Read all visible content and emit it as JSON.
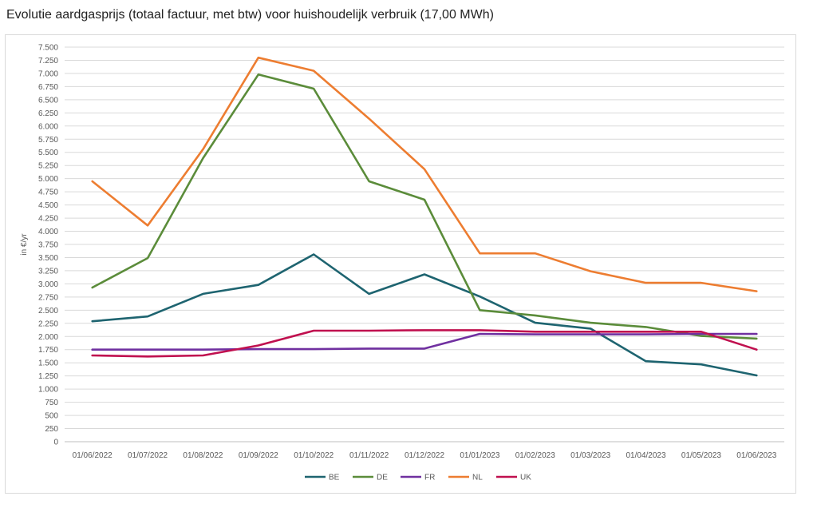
{
  "title": "Evolutie aardgasprijs (totaal factuur, met btw) voor huishoudelijk verbruik (17,00 MWh)",
  "chart_data": {
    "type": "line",
    "title": "Evolutie aardgasprijs (totaal factuur, met btw) voor huishoudelijk verbruik (17,00 MWh)",
    "xlabel": "",
    "ylabel": "in €/yr",
    "ylim": [
      0,
      7500
    ],
    "yticks": [
      7500,
      7250,
      7000,
      6750,
      6500,
      6250,
      6000,
      5750,
      5500,
      5250,
      5000,
      4750,
      4500,
      4250,
      4000,
      3750,
      3500,
      3250,
      3000,
      2750,
      2500,
      2250,
      2000,
      1750,
      1500,
      1250,
      1000,
      750,
      500,
      250,
      0
    ],
    "ytick_labels": [
      "7.500",
      "7.250",
      "7.000",
      "6.750",
      "6.500",
      "6.250",
      "6.000",
      "5.750",
      "5.500",
      "5.250",
      "5.000",
      "4.750",
      "4.500",
      "4.250",
      "4.000",
      "3.750",
      "3.500",
      "3.250",
      "3.000",
      "2.750",
      "2.500",
      "2.250",
      "2.000",
      "1.750",
      "1.500",
      "1.250",
      "1.000",
      "750",
      "500",
      "250",
      "0"
    ],
    "categories": [
      "01/06/2022",
      "01/07/2022",
      "01/08/2022",
      "01/09/2022",
      "01/10/2022",
      "01/11/2022",
      "01/12/2022",
      "01/01/2023",
      "01/02/2023",
      "01/03/2023",
      "01/04/2023",
      "01/05/2023",
      "01/06/2023"
    ],
    "grid": "horizontal",
    "legend_position": "bottom",
    "series": [
      {
        "name": "BE",
        "color": "#1e6470",
        "values": [
          2290,
          2380,
          2810,
          2980,
          3560,
          2810,
          3180,
          2760,
          2260,
          2150,
          1530,
          1470,
          1260
        ]
      },
      {
        "name": "DE",
        "color": "#5b8c3a",
        "values": [
          2930,
          3490,
          5390,
          6980,
          6710,
          4950,
          4600,
          2500,
          2400,
          2260,
          2180,
          2010,
          1960
        ]
      },
      {
        "name": "FR",
        "color": "#7030a0",
        "values": [
          1750,
          1750,
          1750,
          1760,
          1760,
          1770,
          1770,
          2050,
          2040,
          2040,
          2040,
          2050,
          2050
        ]
      },
      {
        "name": "NL",
        "color": "#ed7d31",
        "values": [
          4950,
          4110,
          5560,
          7300,
          7050,
          6140,
          5180,
          3580,
          3580,
          3240,
          3020,
          3020,
          2860
        ]
      },
      {
        "name": "UK",
        "color": "#c0104f",
        "values": [
          1640,
          1620,
          1640,
          1830,
          2110,
          2110,
          2120,
          2120,
          2090,
          2090,
          2090,
          2090,
          1750
        ]
      }
    ]
  }
}
